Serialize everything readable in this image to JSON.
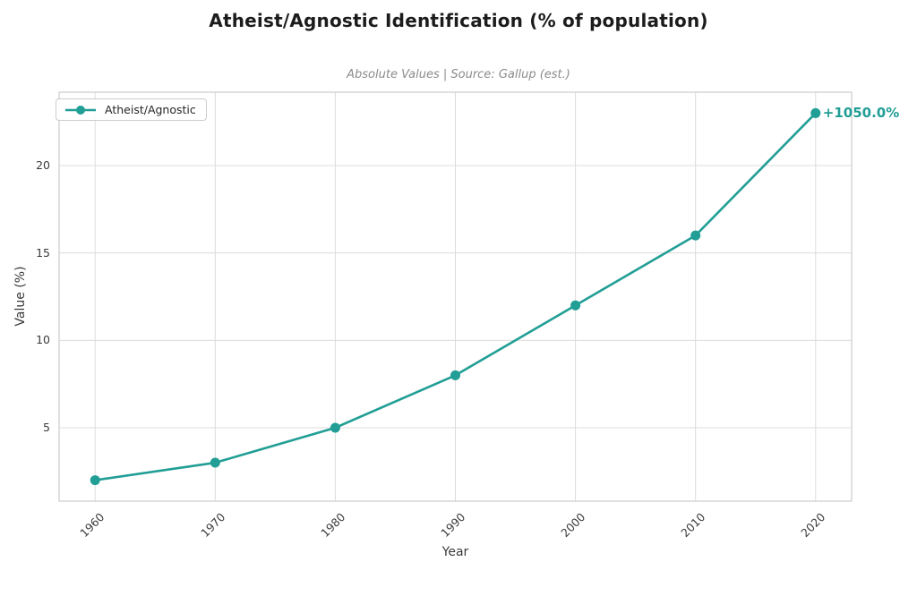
{
  "chart_data": {
    "type": "line",
    "title": "Atheist/Agnostic Identification (% of population)",
    "subtitle": "Absolute Values | Source: Gallup (est.)",
    "xlabel": "Year",
    "ylabel": "Value (%)",
    "x": [
      1960,
      1970,
      1980,
      1990,
      2000,
      2010,
      2020
    ],
    "series": [
      {
        "name": "Atheist/Agnostic",
        "values": [
          2,
          3,
          5,
          8,
          12,
          16,
          23
        ]
      }
    ],
    "annotation": "+1050.0%",
    "xlim": [
      1957,
      2023
    ],
    "ylim": [
      0.8,
      24.2
    ],
    "yticks": [
      5,
      10,
      15,
      20
    ],
    "grid": true,
    "legend_position": "upper left",
    "colors": {
      "accent": "#219e95",
      "grid": "#dcdcdc",
      "spine": "#cccccc",
      "title": "#1c1c1c",
      "subtitle": "#8b8b8b",
      "tick": "#3a3a3a"
    }
  }
}
